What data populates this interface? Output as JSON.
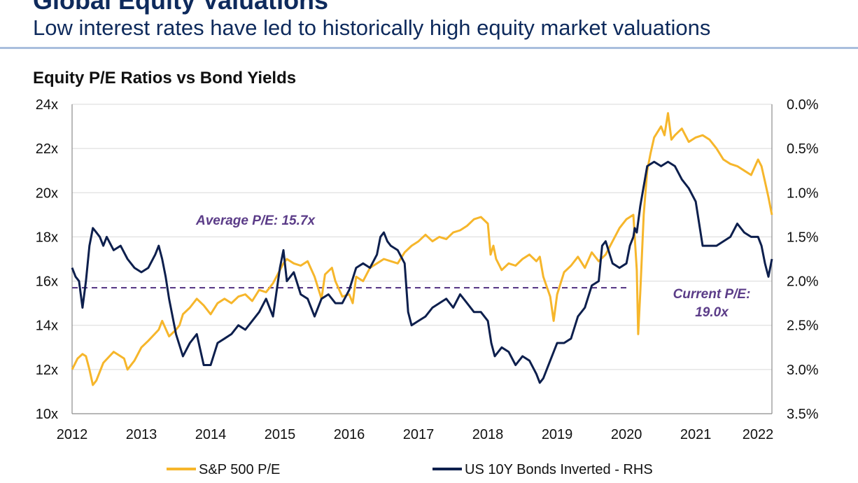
{
  "header": {
    "title": "Global Equity Valuations",
    "subtitle": "Low interest rates have led to historically high equity market valuations"
  },
  "colors": {
    "sp500": "#f6b62b",
    "bonds": "#0d1f4d",
    "average_line": "#5b3c88",
    "annotation": "#5b3c88",
    "grid": "#d9d9d9",
    "header_rule": "#a9bedd"
  },
  "chart_data": {
    "type": "line",
    "title": "Equity P/E Ratios vs Bond Yields",
    "grid": true,
    "legend_position": "bottom",
    "x_ticks": [
      "2012",
      "2013",
      "2014",
      "2015",
      "2016",
      "2017",
      "2018",
      "2019",
      "2020",
      "2021",
      "2022"
    ],
    "xlim": [
      2012,
      2022.1
    ],
    "y_left": {
      "lim": [
        10,
        24
      ],
      "ticks": [
        10,
        12,
        14,
        16,
        18,
        20,
        22,
        24
      ],
      "tick_labels": [
        "10x",
        "12x",
        "14x",
        "16x",
        "18x",
        "20x",
        "22x",
        "24x"
      ]
    },
    "y_right": {
      "lim": [
        0.0,
        3.5
      ],
      "inverted": true,
      "ticks": [
        0.0,
        0.5,
        1.0,
        1.5,
        2.0,
        2.5,
        3.0,
        3.5
      ],
      "tick_labels": [
        "0.0%",
        "0.5%",
        "1.0%",
        "1.5%",
        "2.0%",
        "2.5%",
        "3.0%",
        "3.5%"
      ]
    },
    "series": [
      {
        "name": "S&P 500 P/E",
        "axis": "left",
        "x": [
          2012.0,
          2012.08,
          2012.15,
          2012.2,
          2012.25,
          2012.3,
          2012.35,
          2012.45,
          2012.6,
          2012.75,
          2012.8,
          2012.9,
          2013.0,
          2013.1,
          2013.25,
          2013.3,
          2013.4,
          2013.5,
          2013.55,
          2013.6,
          2013.7,
          2013.8,
          2013.9,
          2014.0,
          2014.1,
          2014.2,
          2014.3,
          2014.4,
          2014.5,
          2014.6,
          2014.7,
          2014.8,
          2014.9,
          2015.0,
          2015.05,
          2015.1,
          2015.2,
          2015.3,
          2015.4,
          2015.5,
          2015.6,
          2015.65,
          2015.75,
          2015.8,
          2015.9,
          2016.0,
          2016.05,
          2016.1,
          2016.2,
          2016.3,
          2016.4,
          2016.5,
          2016.6,
          2016.7,
          2016.8,
          2016.9,
          2017.0,
          2017.1,
          2017.2,
          2017.3,
          2017.4,
          2017.5,
          2017.6,
          2017.7,
          2017.8,
          2017.9,
          2018.0,
          2018.04,
          2018.08,
          2018.12,
          2018.2,
          2018.3,
          2018.4,
          2018.5,
          2018.6,
          2018.7,
          2018.75,
          2018.8,
          2018.9,
          2018.95,
          2019.0,
          2019.1,
          2019.2,
          2019.3,
          2019.4,
          2019.5,
          2019.6,
          2019.7,
          2019.8,
          2019.9,
          2020.0,
          2020.1,
          2020.15,
          2020.17,
          2020.2,
          2020.25,
          2020.3,
          2020.35,
          2020.4,
          2020.5,
          2020.55,
          2020.6,
          2020.65,
          2020.7,
          2020.8,
          2020.9,
          2021.0,
          2021.1,
          2021.2,
          2021.3,
          2021.4,
          2021.5,
          2021.6,
          2021.7,
          2021.8,
          2021.9,
          2021.95,
          2022.0,
          2022.05,
          2022.1
        ],
        "values": [
          12.0,
          12.5,
          12.7,
          12.6,
          12.0,
          11.3,
          11.5,
          12.3,
          12.8,
          12.5,
          12.0,
          12.4,
          13.0,
          13.3,
          13.8,
          14.2,
          13.5,
          13.8,
          14.0,
          14.5,
          14.8,
          15.2,
          14.9,
          14.5,
          15.0,
          15.2,
          15.0,
          15.3,
          15.4,
          15.1,
          15.6,
          15.5,
          15.9,
          16.5,
          16.8,
          17.0,
          16.8,
          16.7,
          16.9,
          16.2,
          15.2,
          16.3,
          16.6,
          16.0,
          15.3,
          15.4,
          15.0,
          16.2,
          16.0,
          16.6,
          16.8,
          17.0,
          16.9,
          16.8,
          17.3,
          17.6,
          17.8,
          18.1,
          17.8,
          18.0,
          17.9,
          18.2,
          18.3,
          18.5,
          18.8,
          18.9,
          18.6,
          17.2,
          17.6,
          17.0,
          16.5,
          16.8,
          16.7,
          17.0,
          17.2,
          16.9,
          17.1,
          16.2,
          15.3,
          14.2,
          15.4,
          16.4,
          16.7,
          17.1,
          16.6,
          17.3,
          16.9,
          17.2,
          17.8,
          18.4,
          18.8,
          19.0,
          16.5,
          13.6,
          15.5,
          19.0,
          21.0,
          21.8,
          22.5,
          23.0,
          22.6,
          23.6,
          22.4,
          22.6,
          22.9,
          22.3,
          22.5,
          22.6,
          22.4,
          22.0,
          21.5,
          21.3,
          21.2,
          21.0,
          20.8,
          21.5,
          21.2,
          20.5,
          19.8,
          19.0
        ]
      },
      {
        "name": "US 10Y Bonds Inverted - RHS",
        "axis": "right",
        "x": [
          2012.0,
          2012.05,
          2012.1,
          2012.15,
          2012.2,
          2012.25,
          2012.3,
          2012.35,
          2012.4,
          2012.45,
          2012.5,
          2012.6,
          2012.7,
          2012.8,
          2012.9,
          2013.0,
          2013.1,
          2013.2,
          2013.25,
          2013.3,
          2013.35,
          2013.4,
          2013.5,
          2013.6,
          2013.7,
          2013.8,
          2013.9,
          2014.0,
          2014.1,
          2014.2,
          2014.3,
          2014.4,
          2014.5,
          2014.6,
          2014.7,
          2014.8,
          2014.9,
          2015.0,
          2015.05,
          2015.1,
          2015.2,
          2015.3,
          2015.4,
          2015.5,
          2015.6,
          2015.7,
          2015.8,
          2015.9,
          2016.0,
          2016.1,
          2016.2,
          2016.3,
          2016.4,
          2016.45,
          2016.5,
          2016.55,
          2016.6,
          2016.7,
          2016.8,
          2016.85,
          2016.9,
          2017.0,
          2017.1,
          2017.2,
          2017.3,
          2017.4,
          2017.5,
          2017.6,
          2017.7,
          2017.8,
          2017.9,
          2018.0,
          2018.05,
          2018.1,
          2018.2,
          2018.3,
          2018.4,
          2018.5,
          2018.6,
          2018.7,
          2018.75,
          2018.8,
          2018.9,
          2019.0,
          2019.1,
          2019.2,
          2019.3,
          2019.4,
          2019.5,
          2019.6,
          2019.65,
          2019.7,
          2019.8,
          2019.9,
          2020.0,
          2020.05,
          2020.1,
          2020.12,
          2020.15,
          2020.2,
          2020.3,
          2020.4,
          2020.5,
          2020.6,
          2020.7,
          2020.8,
          2020.9,
          2021.0,
          2021.1,
          2021.2,
          2021.3,
          2021.4,
          2021.5,
          2021.6,
          2021.7,
          2021.8,
          2021.9,
          2021.95,
          2022.0,
          2022.05,
          2022.1
        ],
        "values": [
          1.85,
          1.95,
          2.0,
          2.3,
          2.0,
          1.6,
          1.4,
          1.45,
          1.5,
          1.6,
          1.5,
          1.65,
          1.6,
          1.75,
          1.85,
          1.9,
          1.85,
          1.7,
          1.6,
          1.75,
          1.95,
          2.2,
          2.6,
          2.85,
          2.7,
          2.6,
          2.95,
          2.95,
          2.7,
          2.65,
          2.6,
          2.5,
          2.55,
          2.45,
          2.35,
          2.2,
          2.4,
          1.85,
          1.65,
          2.0,
          1.9,
          2.15,
          2.2,
          2.4,
          2.2,
          2.15,
          2.25,
          2.25,
          2.1,
          1.85,
          1.8,
          1.85,
          1.7,
          1.5,
          1.45,
          1.55,
          1.6,
          1.65,
          1.8,
          2.35,
          2.5,
          2.45,
          2.4,
          2.3,
          2.25,
          2.2,
          2.3,
          2.15,
          2.25,
          2.35,
          2.35,
          2.45,
          2.7,
          2.85,
          2.75,
          2.8,
          2.95,
          2.85,
          2.9,
          3.05,
          3.15,
          3.1,
          2.9,
          2.7,
          2.7,
          2.65,
          2.4,
          2.3,
          2.05,
          2.0,
          1.6,
          1.55,
          1.8,
          1.85,
          1.8,
          1.6,
          1.5,
          1.4,
          1.45,
          1.15,
          0.7,
          0.65,
          0.7,
          0.65,
          0.7,
          0.85,
          0.95,
          1.1,
          1.6,
          1.6,
          1.6,
          1.55,
          1.5,
          1.35,
          1.45,
          1.5,
          1.5,
          1.6,
          1.8,
          1.95,
          1.75
        ]
      }
    ],
    "annotations": [
      {
        "id": "average-pe",
        "text": "Average P/E: 15.7x",
        "value": 15.7
      },
      {
        "id": "current-pe",
        "lines": [
          "Current P/E:",
          "19.0x"
        ],
        "value": 19.0
      }
    ]
  }
}
